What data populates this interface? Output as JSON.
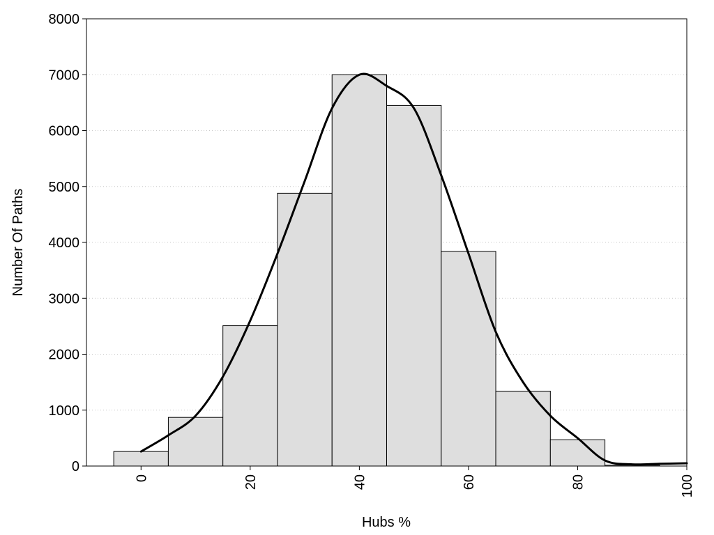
{
  "chart_data": {
    "type": "bar",
    "title": "",
    "xlabel": "Hubs %",
    "ylabel": "Number Of Paths",
    "xlim": [
      -10,
      100
    ],
    "ylim": [
      0,
      8000
    ],
    "x_ticks": [
      0,
      20,
      40,
      60,
      80,
      100
    ],
    "y_ticks": [
      0,
      1000,
      2000,
      3000,
      4000,
      5000,
      6000,
      7000,
      8000
    ],
    "grid": "horizontal dotted",
    "bin_width": 10,
    "categories": [
      0,
      10,
      20,
      30,
      40,
      50,
      60,
      70,
      80,
      90
    ],
    "values": [
      260,
      870,
      2510,
      4880,
      7000,
      6450,
      3840,
      1340,
      470,
      15
    ],
    "curve": {
      "x": [
        0,
        5,
        10,
        15,
        20,
        25,
        30,
        35,
        40,
        45,
        50,
        55,
        60,
        65,
        70,
        75,
        80,
        85,
        90,
        95,
        100
      ],
      "y": [
        260,
        550,
        900,
        1600,
        2600,
        3800,
        5100,
        6400,
        7000,
        6800,
        6400,
        5200,
        3800,
        2400,
        1500,
        900,
        500,
        100,
        30,
        40,
        50
      ]
    },
    "colors": {
      "bar_fill": "#dedede",
      "bar_stroke": "#000000",
      "curve": "#000000",
      "grid": "#c8c8c8"
    }
  }
}
